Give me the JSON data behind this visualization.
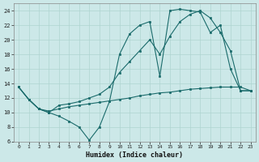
{
  "xlabel": "Humidex (Indice chaleur)",
  "bg_color": "#cce8e8",
  "grid_color": "#afd4d0",
  "line_color": "#1a6b6b",
  "xlim": [
    -0.5,
    23.5
  ],
  "ylim": [
    6,
    25
  ],
  "xticks": [
    0,
    1,
    2,
    3,
    4,
    5,
    6,
    7,
    8,
    9,
    10,
    11,
    12,
    13,
    14,
    15,
    16,
    17,
    18,
    19,
    20,
    21,
    22,
    23
  ],
  "yticks": [
    6,
    8,
    10,
    12,
    14,
    16,
    18,
    20,
    22,
    24
  ],
  "line1_x": [
    0,
    1,
    2,
    3,
    4,
    5,
    6,
    7,
    8,
    9,
    10,
    11,
    12,
    13,
    14,
    15,
    16,
    17,
    18,
    19,
    20,
    21,
    22,
    23
  ],
  "line1_y": [
    13.5,
    11.8,
    10.5,
    10.0,
    9.5,
    8.8,
    8.0,
    6.2,
    8.0,
    11.5,
    18.0,
    20.8,
    22.0,
    22.5,
    15.0,
    24.0,
    24.2,
    24.0,
    23.8,
    21.0,
    22.0,
    16.0,
    13.0,
    13.0
  ],
  "line2_x": [
    0,
    1,
    2,
    3,
    4,
    5,
    6,
    7,
    8,
    9,
    10,
    11,
    12,
    13,
    14,
    15,
    16,
    17,
    18,
    19,
    20,
    21,
    22,
    23
  ],
  "line2_y": [
    13.5,
    11.8,
    10.5,
    10.0,
    11.0,
    11.2,
    11.5,
    12.0,
    12.5,
    13.5,
    15.5,
    17.0,
    18.5,
    20.0,
    18.0,
    20.5,
    22.5,
    23.5,
    24.0,
    23.0,
    21.0,
    18.5,
    13.0,
    13.0
  ],
  "line3_x": [
    0,
    1,
    2,
    3,
    4,
    5,
    6,
    7,
    8,
    9,
    10,
    11,
    12,
    13,
    14,
    15,
    16,
    17,
    18,
    19,
    20,
    21,
    22,
    23
  ],
  "line3_y": [
    13.5,
    11.8,
    10.5,
    10.2,
    10.5,
    10.8,
    11.0,
    11.2,
    11.4,
    11.6,
    11.8,
    12.0,
    12.3,
    12.5,
    12.7,
    12.8,
    13.0,
    13.2,
    13.3,
    13.4,
    13.5,
    13.5,
    13.5,
    13.0
  ]
}
